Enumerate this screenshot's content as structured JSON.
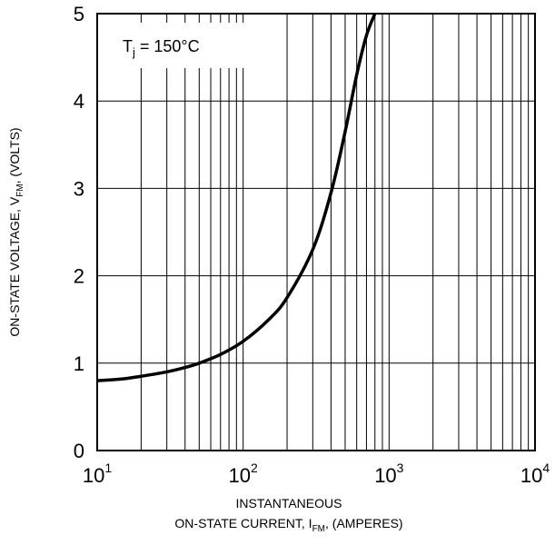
{
  "chart_data": {
    "type": "line",
    "title": "",
    "x_scale": "log",
    "xlim": [
      10,
      10000
    ],
    "ylim": [
      0,
      5
    ],
    "grid": true,
    "x_tick_labels": [
      {
        "value": 10,
        "base": "10",
        "exp": "1"
      },
      {
        "value": 100,
        "base": "10",
        "exp": "2"
      },
      {
        "value": 1000,
        "base": "10",
        "exp": "3"
      },
      {
        "value": 10000,
        "base": "10",
        "exp": "4"
      }
    ],
    "y_ticks": [
      0,
      1,
      2,
      3,
      4,
      5
    ],
    "xlabel": {
      "line1": "INSTANTANEOUS",
      "line2_prefix": "ON-STATE CURRENT, I",
      "line2_sub": "FM",
      "line2_suffix": ", (AMPERES)"
    },
    "ylabel": {
      "prefix": "ON-STATE VOLTAGE, V",
      "sub": "FM",
      "suffix": ", (VOLTS)"
    },
    "annotation": {
      "main": "T",
      "sub": "j",
      "rest": " = 150°C"
    },
    "series": [
      {
        "color": "#000000",
        "x": [
          10,
          15,
          20,
          30,
          40,
          50,
          70,
          100,
          150,
          200,
          300,
          400,
          500,
          600,
          700,
          800
        ],
        "y": [
          0.8,
          0.82,
          0.85,
          0.9,
          0.95,
          1.0,
          1.1,
          1.25,
          1.5,
          1.75,
          2.3,
          2.95,
          3.65,
          4.3,
          4.75,
          5.0
        ]
      }
    ]
  }
}
